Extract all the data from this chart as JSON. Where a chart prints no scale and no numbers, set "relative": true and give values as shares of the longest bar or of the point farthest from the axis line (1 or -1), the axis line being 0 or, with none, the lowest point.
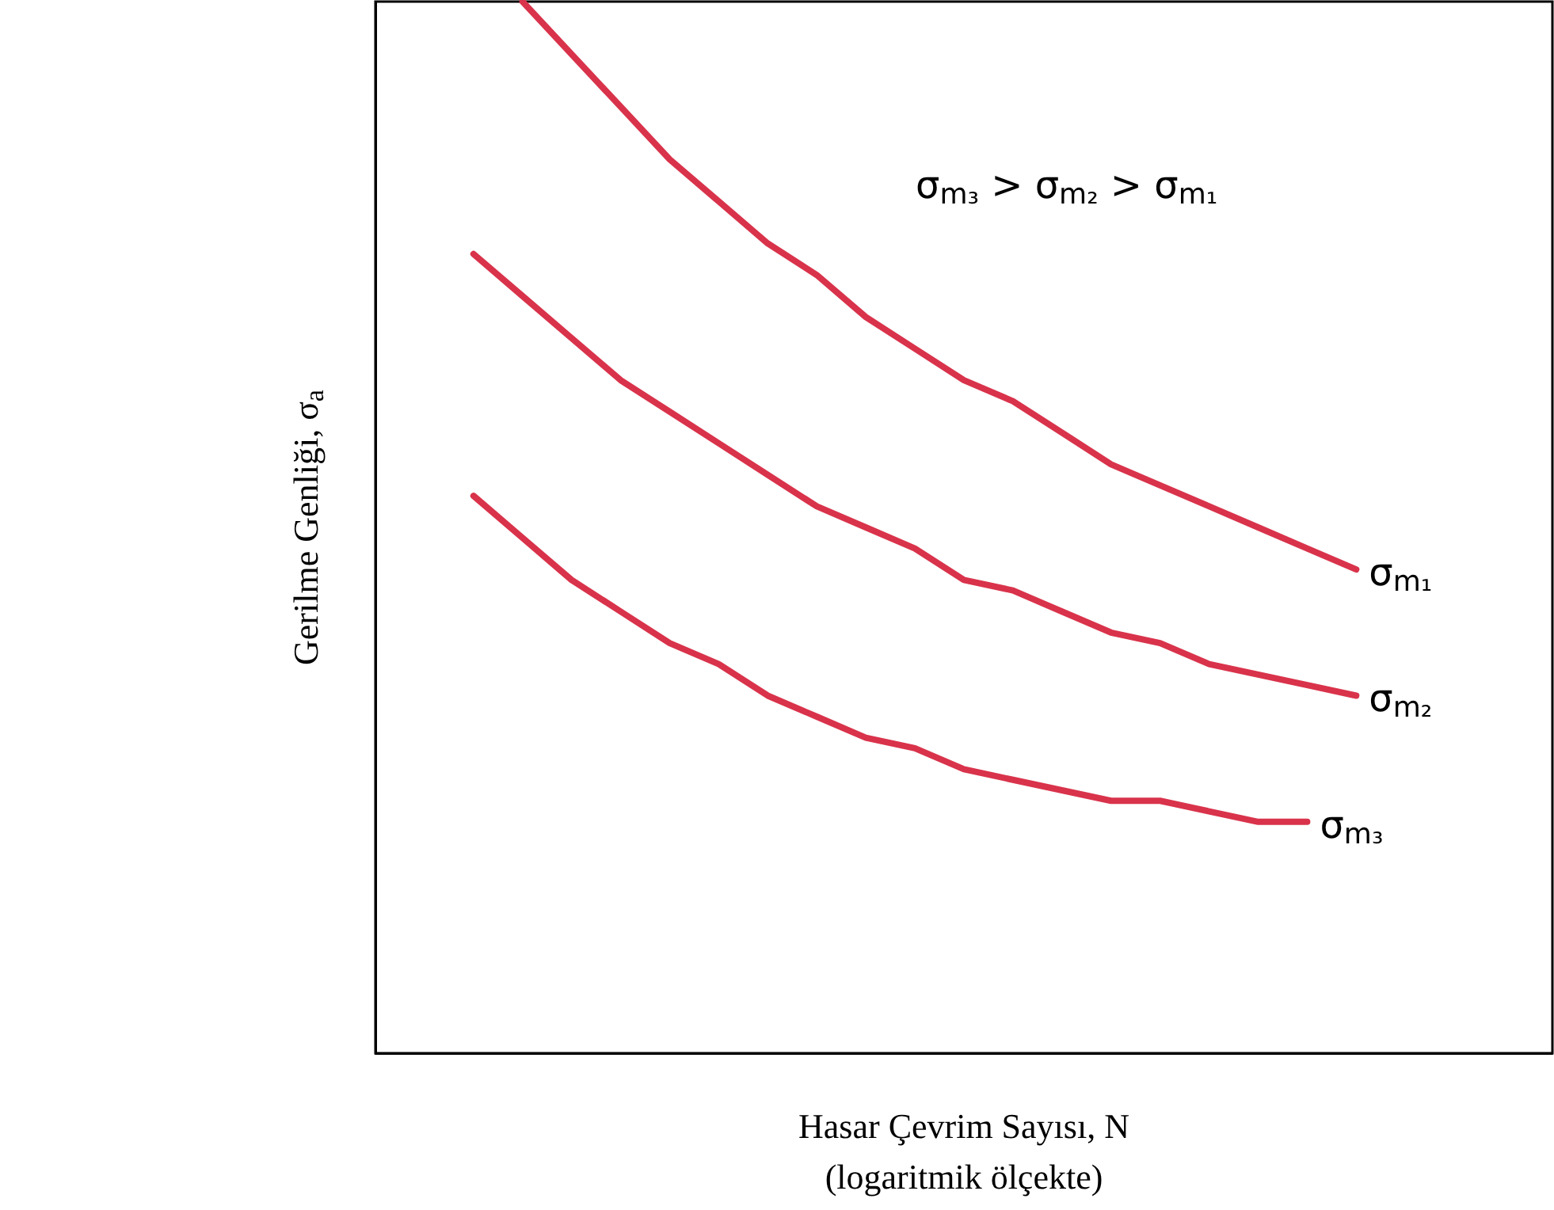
{
  "chart_data": {
    "type": "line",
    "relative": true,
    "xlabel": "Hasar Çevrim Sayısı, N\n(logaritmik ölçekte)",
    "ylabel": "Gerilme Genliği, σ$_{a}$",
    "annotations": [
      "σ$_{m₃}$ > σ$_{m₂}$ > σ$_{m₁}$"
    ],
    "categories": [
      null,
      null,
      null,
      null,
      null,
      null,
      null,
      null,
      null,
      null,
      null,
      null,
      null,
      null,
      null,
      null,
      null,
      null,
      null,
      null,
      null,
      null,
      null,
      null,
      null
    ],
    "series": [
      {
        "name": "σ$_{m₁}$",
        "color": "#d9334b",
        "values": [
          null,
          null,
          null,
          1,
          0.95,
          0.9,
          0.85,
          0.81,
          0.77,
          0.74,
          0.7,
          0.67,
          0.64,
          0.62,
          0.59,
          0.56,
          0.54,
          0.52,
          0.5,
          0.48,
          0.46,
          null,
          null,
          null,
          null
        ]
      },
      {
        "name": "σ$_{m₂}$",
        "color": "#d9334b",
        "values": [
          null,
          null,
          0.76,
          0.72,
          0.68,
          0.64,
          0.61,
          0.58,
          0.55,
          0.52,
          0.5,
          0.48,
          0.45,
          0.44,
          0.42,
          0.4,
          0.39,
          0.37,
          0.36,
          0.35,
          0.34,
          null,
          null,
          null,
          null
        ]
      },
      {
        "name": "σ$_{m₃}$",
        "color": "#d9334b",
        "values": [
          null,
          null,
          0.53,
          0.49,
          0.45,
          0.42,
          0.39,
          0.37,
          0.34,
          0.32,
          0.3,
          0.29,
          0.27,
          0.26,
          0.25,
          0.24,
          0.24,
          0.23,
          0.22,
          0.22,
          null,
          null,
          null,
          null,
          null
        ]
      }
    ]
  }
}
